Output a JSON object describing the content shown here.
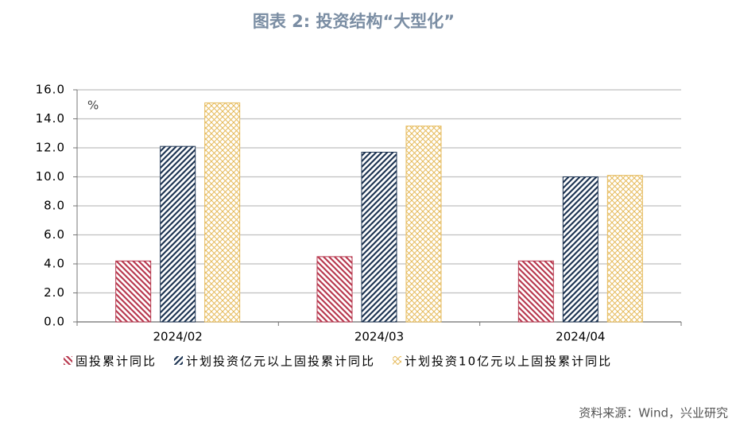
{
  "chart_data": {
    "type": "bar",
    "title": "图表 2:  投资结构“大型化”",
    "unit_label": "%",
    "source": "资料来源：Wind，兴业研究",
    "categories": [
      "2024/02",
      "2024/03",
      "2024/04"
    ],
    "series": [
      {
        "name": "固投累计同比",
        "color": "#b8394f",
        "hatch": "backslash",
        "values": [
          4.2,
          4.5,
          4.2
        ]
      },
      {
        "name": "计划投资亿元以上固投累计同比",
        "color": "#1e3553",
        "hatch": "slash",
        "values": [
          12.1,
          11.7,
          10.0
        ]
      },
      {
        "name": "计划投资10亿元以上固投累计同比",
        "color": "#e6bb5c",
        "hatch": "cross",
        "values": [
          15.1,
          13.5,
          10.1
        ]
      }
    ],
    "ylim": [
      0,
      16
    ],
    "yticks": [
      {
        "value": 0,
        "label": "0.0"
      },
      {
        "value": 2,
        "label": "2.0"
      },
      {
        "value": 4,
        "label": "4.0"
      },
      {
        "value": 6,
        "label": "6.0"
      },
      {
        "value": 8,
        "label": "8.0"
      },
      {
        "value": 10,
        "label": "10.0"
      },
      {
        "value": 12,
        "label": "12.0"
      },
      {
        "value": 14,
        "label": "14.0"
      },
      {
        "value": 16,
        "label": "16.0"
      }
    ],
    "grid": true
  }
}
